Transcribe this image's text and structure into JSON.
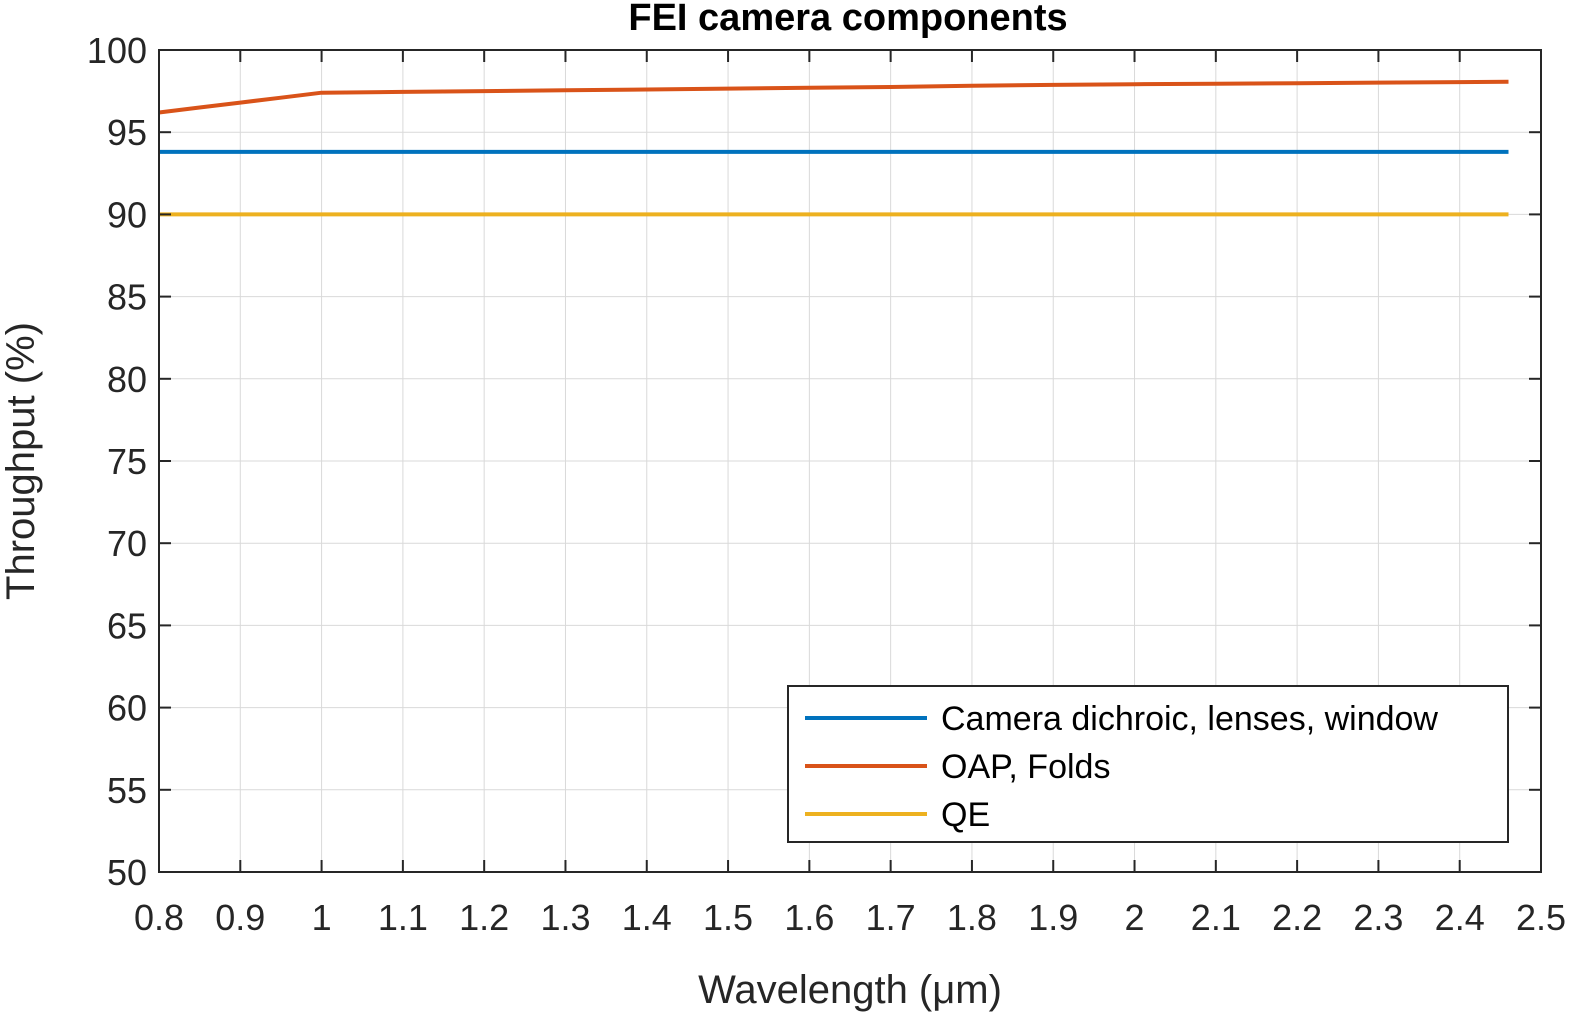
{
  "chart_data": {
    "type": "line",
    "title": "FEI camera components",
    "xlabel": "Wavelength (μm)",
    "ylabel": "Throughput (%)",
    "xlim": [
      0.8,
      2.5
    ],
    "ylim": [
      50,
      100
    ],
    "xticks": [
      0.8,
      0.9,
      1,
      1.1,
      1.2,
      1.3,
      1.4,
      1.5,
      1.6,
      1.7,
      1.8,
      1.9,
      2,
      2.1,
      2.2,
      2.3,
      2.4,
      2.5
    ],
    "xtick_labels": [
      "0.8",
      "0.9",
      "1",
      "1.1",
      "1.2",
      "1.3",
      "1.4",
      "1.5",
      "1.6",
      "1.7",
      "1.8",
      "1.9",
      "2",
      "2.1",
      "2.2",
      "2.3",
      "2.4",
      "2.5"
    ],
    "yticks": [
      50,
      55,
      60,
      65,
      70,
      75,
      80,
      85,
      90,
      95,
      100
    ],
    "ytick_labels": [
      "50",
      "55",
      "60",
      "65",
      "70",
      "75",
      "80",
      "85",
      "90",
      "95",
      "100"
    ],
    "grid": true,
    "legend_position": "bottom-right",
    "series": [
      {
        "name": "Camera dichroic, lenses, window",
        "color": "#0072BD",
        "x": [
          0.8,
          2.46
        ],
        "y": [
          93.8,
          93.8
        ]
      },
      {
        "name": "OAP, Folds",
        "color": "#D95319",
        "x": [
          0.8,
          0.85,
          0.9,
          0.95,
          1.0,
          1.1,
          1.2,
          1.3,
          1.4,
          1.5,
          1.6,
          1.7,
          1.8,
          1.9,
          2.0,
          2.1,
          2.2,
          2.3,
          2.4,
          2.46
        ],
        "y": [
          96.2,
          96.5,
          96.8,
          97.1,
          97.4,
          97.45,
          97.5,
          97.55,
          97.6,
          97.65,
          97.7,
          97.75,
          97.82,
          97.88,
          97.92,
          97.95,
          97.98,
          98.02,
          98.05,
          98.07
        ]
      },
      {
        "name": "QE",
        "color": "#EDB120",
        "x": [
          0.8,
          2.46
        ],
        "y": [
          90.0,
          90.0
        ]
      }
    ]
  }
}
